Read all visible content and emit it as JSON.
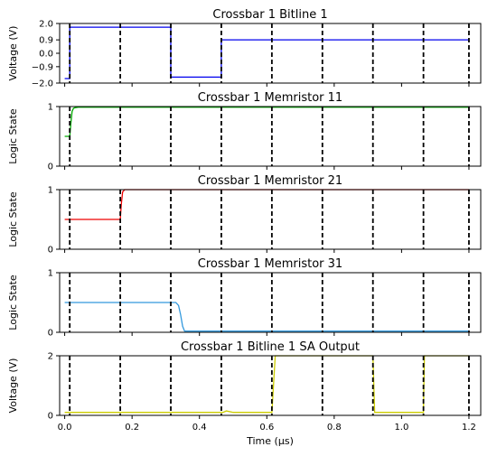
{
  "chart_data": {
    "type": "line",
    "shared_x": {
      "label": "Time (μs)",
      "range": [
        -0.015,
        1.235
      ],
      "ticks": [
        0.0,
        0.2,
        0.4,
        0.6,
        0.8,
        1.0,
        1.2
      ],
      "tick_labels": [
        "0.0",
        "0.2",
        "0.4",
        "0.6",
        "0.8",
        "1.0",
        "1.2"
      ]
    },
    "dashed_vlines_x": [
      0.015,
      0.165,
      0.315,
      0.465,
      0.615,
      0.765,
      0.915,
      1.065,
      1.2
    ],
    "panels": [
      {
        "title": "Crossbar 1 Bitline 1",
        "ylabel": "Voltage (V)",
        "ylim": [
          -2.0,
          2.0
        ],
        "yticks": [
          -2.0,
          -0.9,
          0.0,
          0.9,
          2.0
        ],
        "ytick_labels": [
          "−2.0",
          "−0.9",
          "0.0",
          "0.9",
          "2.0"
        ],
        "color": "#0000ee",
        "x": [
          0.0,
          0.015,
          0.015,
          0.315,
          0.315,
          0.465,
          0.465,
          1.2
        ],
        "values": [
          -1.7,
          -1.7,
          1.75,
          1.75,
          -1.6,
          -1.6,
          0.9,
          0.9
        ]
      },
      {
        "title": "Crossbar 1 Memristor 11",
        "ylabel": "Logic State",
        "ylim": [
          0,
          1
        ],
        "yticks": [
          0,
          1
        ],
        "ytick_labels": [
          "0",
          "1"
        ],
        "color": "#00aa00",
        "x": [
          0.0,
          0.015,
          0.018,
          0.022,
          0.026,
          0.03,
          0.04,
          1.2
        ],
        "values": [
          0.5,
          0.5,
          0.7,
          0.92,
          0.97,
          0.98,
          0.99,
          0.99
        ]
      },
      {
        "title": "Crossbar 1 Memristor 21",
        "ylabel": "Logic State",
        "ylim": [
          0,
          1
        ],
        "yticks": [
          0,
          1
        ],
        "ytick_labels": [
          "0",
          "1"
        ],
        "color": "#ee0000",
        "x": [
          0.0,
          0.165,
          0.168,
          0.172,
          0.178,
          1.2
        ],
        "values": [
          0.5,
          0.5,
          0.75,
          0.96,
          1.0,
          1.0
        ]
      },
      {
        "title": "Crossbar 1 Memristor 31",
        "ylabel": "Logic State",
        "ylim": [
          0,
          1
        ],
        "yticks": [
          0,
          1
        ],
        "ytick_labels": [
          "0",
          "1"
        ],
        "color": "#3399dd",
        "x": [
          0.0,
          0.33,
          0.338,
          0.344,
          0.35,
          0.356,
          1.2
        ],
        "values": [
          0.5,
          0.5,
          0.45,
          0.3,
          0.1,
          0.02,
          0.02
        ]
      },
      {
        "title": "Crossbar 1 Bitline 1 SA Output",
        "ylabel": "Voltage (V)",
        "ylim": [
          0,
          2
        ],
        "yticks": [
          0,
          2
        ],
        "ytick_labels": [
          "0",
          "2"
        ],
        "color": "#cccc00",
        "x": [
          0.0,
          0.47,
          0.48,
          0.5,
          0.52,
          0.615,
          0.625,
          0.915,
          0.92,
          1.065,
          1.068,
          1.2
        ],
        "values": [
          0.1,
          0.1,
          0.15,
          0.1,
          0.1,
          0.1,
          2.0,
          2.0,
          0.1,
          0.1,
          2.0,
          2.0
        ]
      }
    ]
  }
}
